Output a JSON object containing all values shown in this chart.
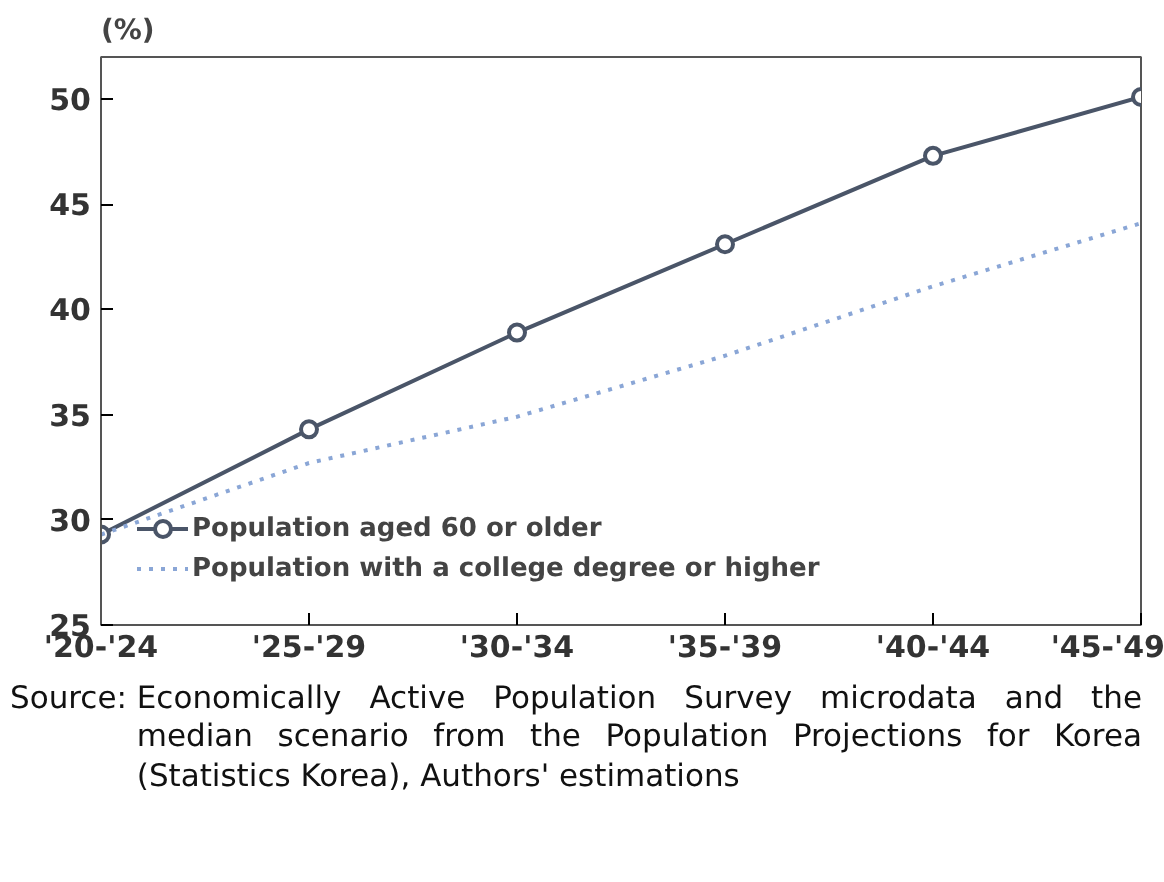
{
  "chart_data": {
    "type": "line",
    "ylabel": "(%)",
    "categories": [
      "'20-'24",
      "'25-'29",
      "'30-'34",
      "'35-'39",
      "'40-'44",
      "'45-'49"
    ],
    "series": [
      {
        "name": "Population aged 60 or older",
        "color": "#4a5568",
        "values": [
          29.3,
          34.3,
          38.9,
          43.1,
          47.3,
          50.1
        ],
        "marker": "circle",
        "line_style": "solid"
      },
      {
        "name": "Population with a college degree or higher",
        "color": "#8aa6d6",
        "values": [
          29.3,
          32.7,
          34.9,
          37.8,
          41.1,
          44.1
        ],
        "marker": "none",
        "line_style": "dotted"
      }
    ],
    "ylim": [
      25,
      52
    ],
    "yticks": [
      25,
      30,
      35,
      40,
      45,
      50
    ],
    "grid": false,
    "legend": "bottom left",
    "annotations": [
      "Source: Economically Active Population Survey microdata and the median scenario from the Population Projections for Korea (Statistics Korea), Authors' estimations"
    ]
  }
}
